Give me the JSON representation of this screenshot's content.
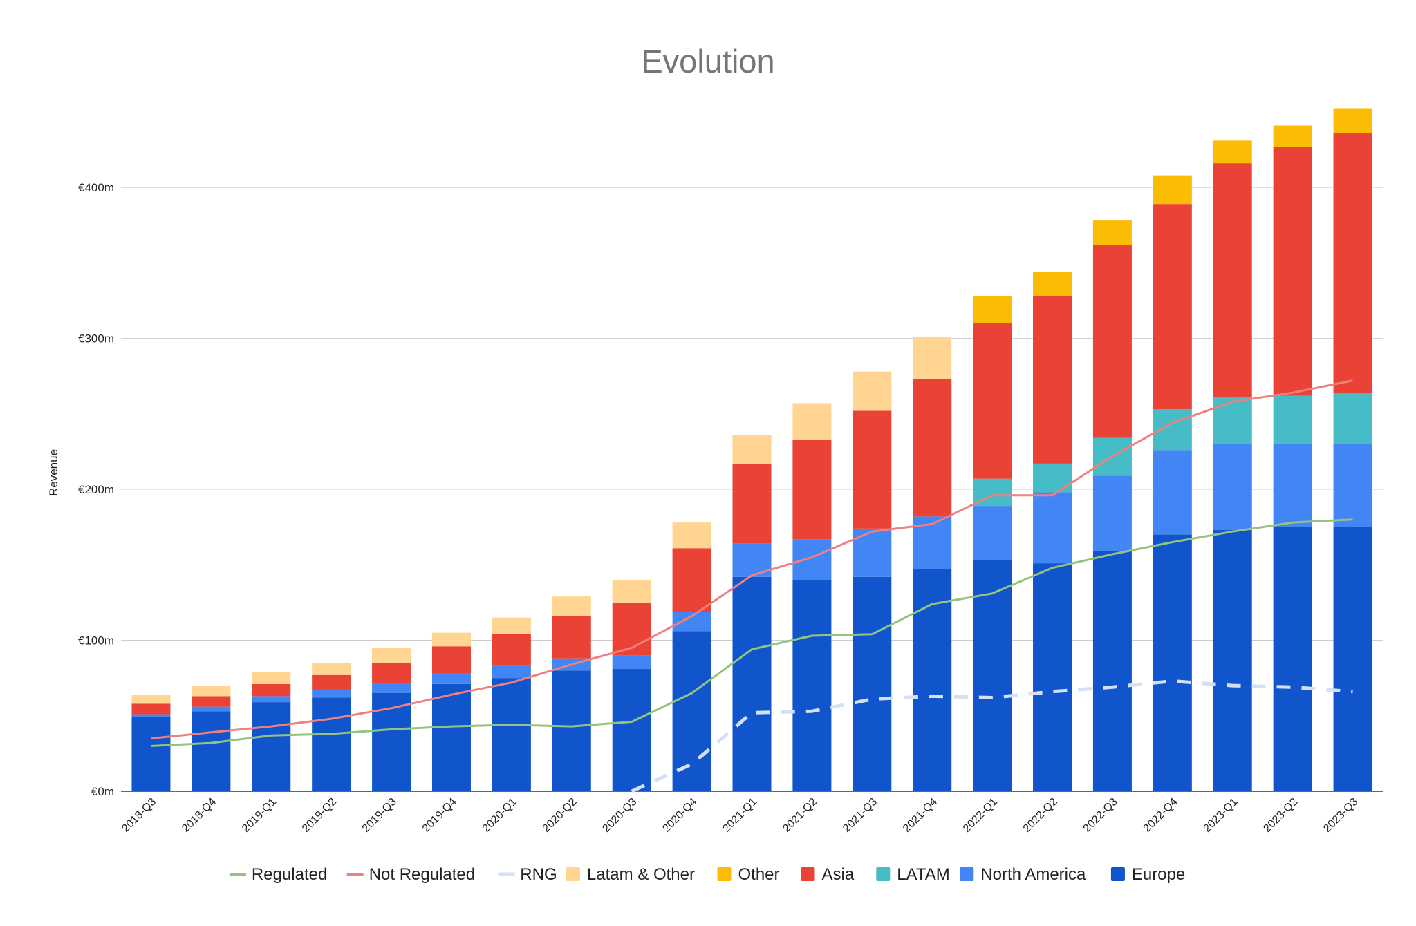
{
  "chart_data": {
    "type": "bar",
    "stacked": true,
    "title": "Evolution",
    "xlabel": "",
    "ylabel": "Revenue",
    "ylim": [
      0,
      460
    ],
    "y_ticks": [
      {
        "value": 0,
        "label": "€0m"
      },
      {
        "value": 100,
        "label": "€100m"
      },
      {
        "value": 200,
        "label": "€200m"
      },
      {
        "value": 300,
        "label": "€300m"
      },
      {
        "value": 400,
        "label": "€400m"
      }
    ],
    "grid": true,
    "legend_position": "bottom",
    "categories": [
      "2018-Q3",
      "2018-Q4",
      "2019-Q1",
      "2019-Q2",
      "2019-Q3",
      "2019-Q4",
      "2020-Q1",
      "2020-Q2",
      "2020-Q3",
      "2020-Q4",
      "2021-Q1",
      "2021-Q2",
      "2021-Q3",
      "2021-Q4",
      "2022-Q1",
      "2022-Q2",
      "2022-Q3",
      "2022-Q4",
      "2023-Q1",
      "2023-Q2",
      "2023-Q3"
    ],
    "bar_series": [
      {
        "name": "Europe",
        "color": "#1155cc",
        "values": [
          49,
          53,
          59,
          62,
          65,
          71,
          75,
          80,
          81,
          106,
          142,
          140,
          142,
          147,
          153,
          151,
          159,
          170,
          173,
          175,
          175
        ]
      },
      {
        "name": "North America",
        "color": "#4285f4",
        "values": [
          2,
          3,
          4,
          5,
          6,
          7,
          8,
          8,
          9,
          13,
          22,
          27,
          32,
          35,
          36,
          47,
          50,
          56,
          57,
          55,
          55
        ]
      },
      {
        "name": "LATAM",
        "color": "#46bdc6",
        "values": [
          null,
          null,
          null,
          null,
          null,
          null,
          null,
          null,
          null,
          null,
          null,
          null,
          null,
          null,
          18,
          19,
          25,
          27,
          31,
          32,
          34
        ]
      },
      {
        "name": "Asia",
        "color": "#ea4335",
        "values": [
          7,
          7,
          8,
          10,
          14,
          18,
          21,
          28,
          35,
          42,
          53,
          66,
          78,
          91,
          103,
          111,
          128,
          136,
          155,
          165,
          172
        ]
      },
      {
        "name": "Other",
        "color": "#fbbc04",
        "values": [
          null,
          null,
          null,
          null,
          null,
          null,
          null,
          null,
          null,
          null,
          null,
          null,
          null,
          null,
          18,
          16,
          16,
          19,
          15,
          14,
          16
        ]
      },
      {
        "name": "Latam & Other",
        "color": "#ffd591",
        "values": [
          6,
          7,
          8,
          8,
          10,
          9,
          11,
          13,
          15,
          17,
          19,
          24,
          26,
          28,
          null,
          null,
          null,
          null,
          null,
          null,
          null
        ]
      }
    ],
    "line_series": [
      {
        "name": "Regulated",
        "color": "#93c47d",
        "dash": false,
        "values": [
          30,
          32,
          37,
          38,
          41,
          43,
          44,
          43,
          46,
          65,
          94,
          103,
          104,
          124,
          131,
          148,
          157,
          165,
          172,
          178,
          180
        ]
      },
      {
        "name": "Not Regulated",
        "color": "#f08080",
        "dash": false,
        "values": [
          35,
          39,
          43,
          48,
          55,
          64,
          72,
          84,
          95,
          116,
          143,
          155,
          172,
          177,
          196,
          196,
          222,
          244,
          258,
          264,
          272
        ]
      },
      {
        "name": "RNG",
        "color": "#d3e0f5",
        "dash": true,
        "values": [
          null,
          null,
          null,
          null,
          null,
          null,
          null,
          null,
          0,
          18,
          52,
          53,
          61,
          63,
          62,
          66,
          69,
          73,
          70,
          69,
          66
        ]
      }
    ],
    "legend": [
      "Regulated",
      "Not Regulated",
      "RNG",
      "Latam & Other",
      "Other",
      "Asia",
      "LATAM",
      "North America",
      "Europe"
    ]
  }
}
